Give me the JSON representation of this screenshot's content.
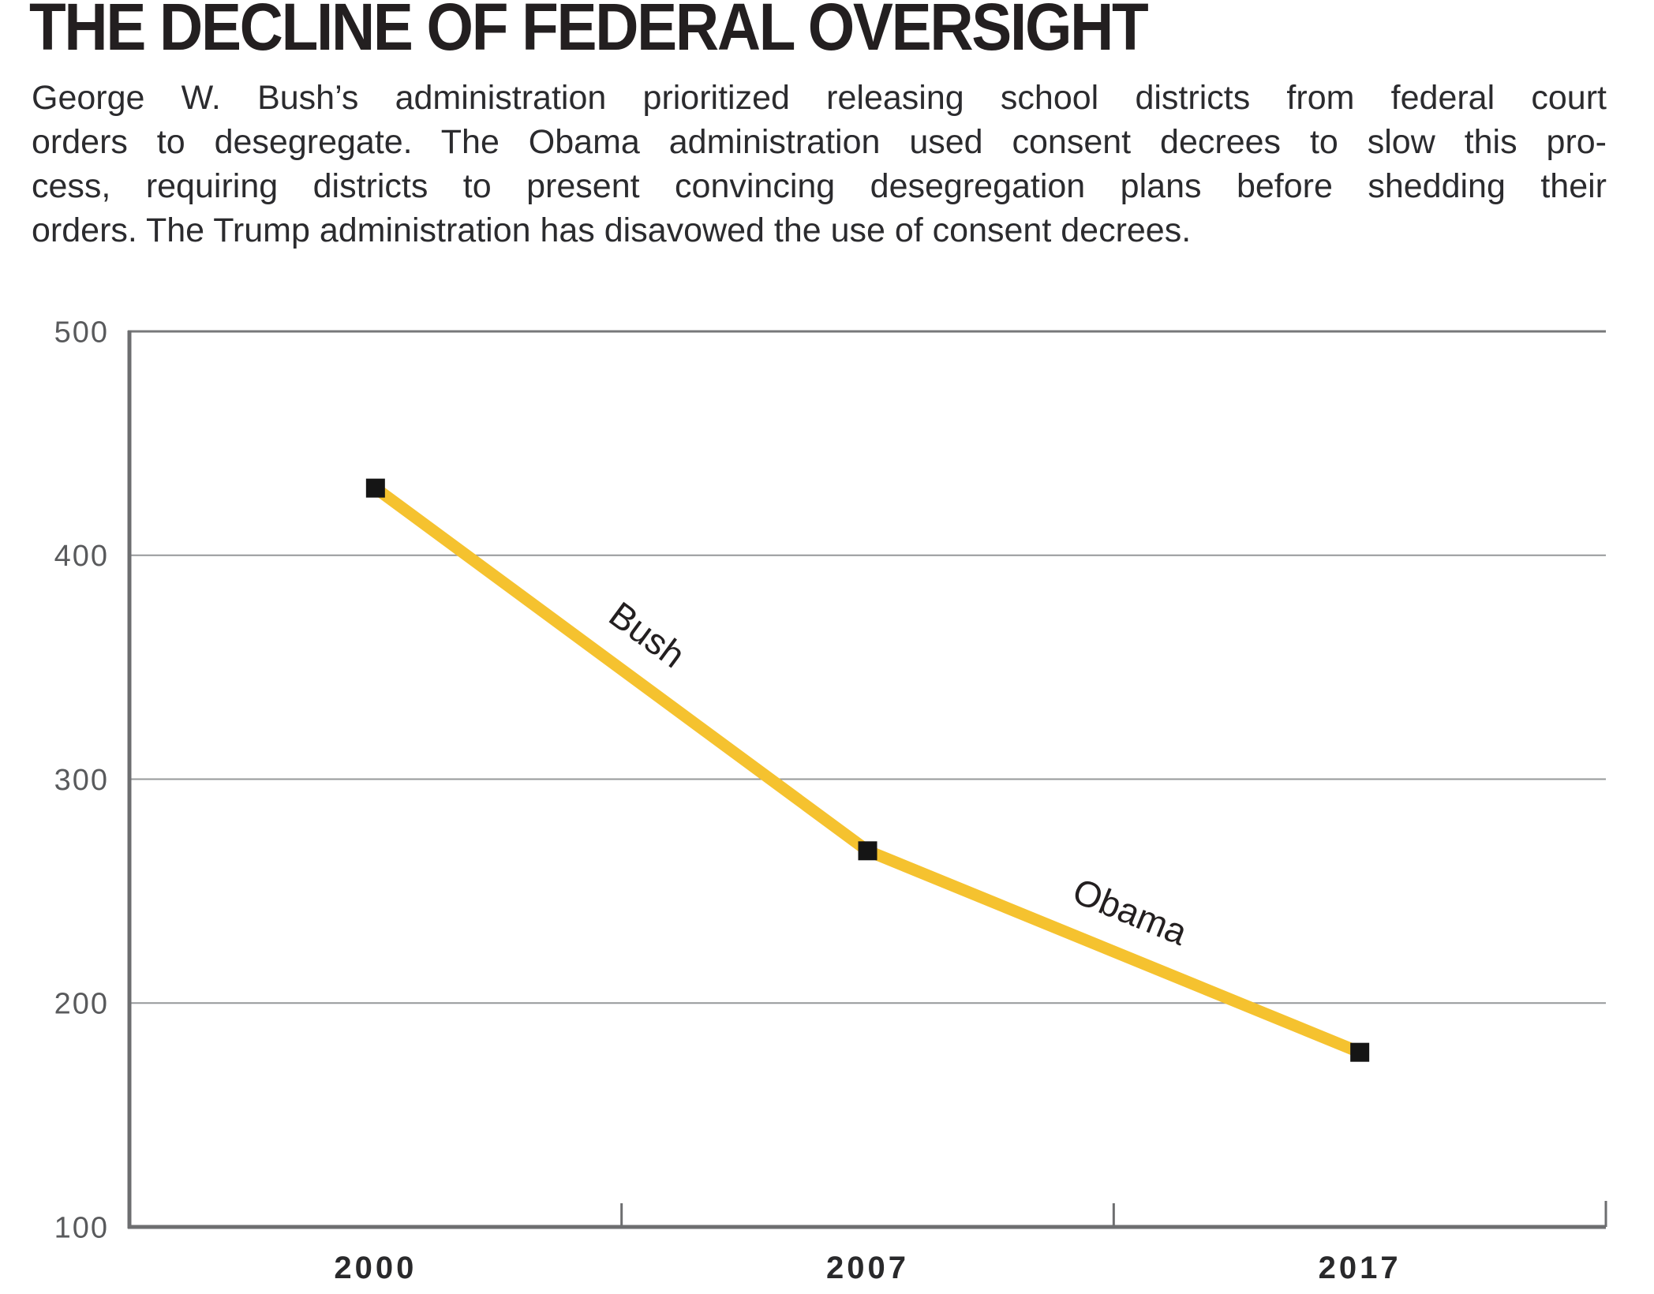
{
  "header": {
    "title": "THE DECLINE OF FEDERAL OVERSIGHT",
    "description_lines": [
      "George W. Bush’s administration prioritized releasing school districts from federal court",
      "orders to desegregate. The Obama administration used consent decrees to slow this pro-",
      "cess, requiring districts to present convincing desegregation plans before shedding their",
      "orders. The Trump administration has disavowed the use of consent decrees."
    ]
  },
  "chart_data": {
    "type": "line",
    "title": "THE DECLINE OF FEDERAL OVERSIGHT",
    "categories": [
      "2000",
      "2007",
      "2017"
    ],
    "series": [
      {
        "values": [
          430,
          268,
          178
        ]
      }
    ],
    "segment_labels": [
      {
        "text": "Bush",
        "segment": 0
      },
      {
        "text": "Obama",
        "segment": 1
      }
    ],
    "ylim": [
      100,
      500
    ],
    "yticks": [
      500,
      400,
      300,
      200,
      100
    ],
    "grid": true,
    "legend_position": "none",
    "colors": {
      "line": "#F5C22F",
      "marker": "#151515",
      "grid": "#96989A",
      "grid_top": "#77787A",
      "axis": "#6D6E70",
      "y_tick_label": "#595A5C",
      "x_tick_label": "#29292B",
      "annotation_text": "#231F20",
      "body_text": "#2B2B2E",
      "title_text": "#231F20"
    }
  }
}
